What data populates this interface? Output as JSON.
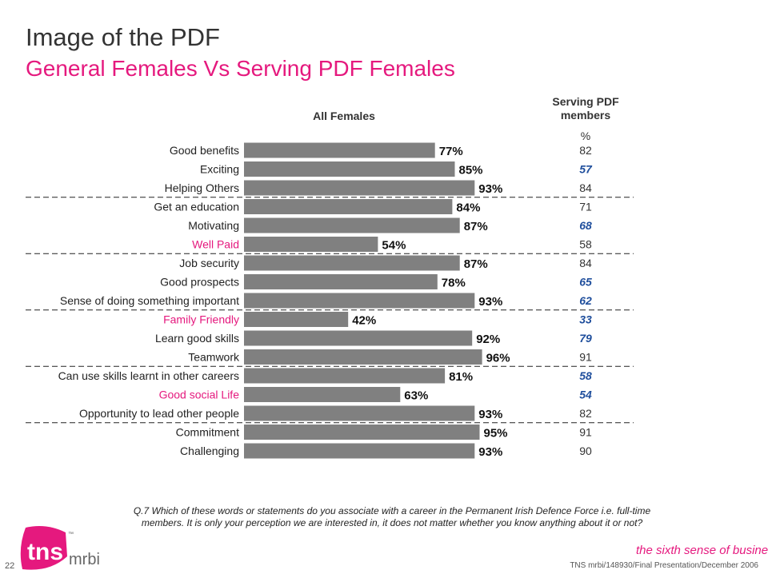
{
  "header": {
    "title": "Image of the PDF",
    "subtitle": "General Females Vs Serving PDF Females"
  },
  "chart_data": {
    "type": "bar",
    "orientation": "horizontal",
    "series_headers": [
      "All Females",
      "Serving PDF members"
    ],
    "second_column_unit": "%",
    "categories": [
      "Good benefits",
      "Exciting",
      "Helping Others",
      "Get an education",
      "Motivating",
      "Well Paid",
      "Job security",
      "Good prospects",
      "Sense of doing something important",
      "Family Friendly",
      "Learn good skills",
      "Teamwork",
      "Can use skills learnt in other careers",
      "Good social Life",
      "Opportunity to lead other people",
      "Commitment",
      "Challenging"
    ],
    "highlighted_categories": [
      "Well Paid",
      "Family Friendly",
      "Good social Life"
    ],
    "series": [
      {
        "name": "All Females",
        "values": [
          77,
          85,
          93,
          84,
          87,
          54,
          87,
          78,
          93,
          42,
          92,
          96,
          81,
          63,
          93,
          95,
          93
        ],
        "value_suffix": "%"
      },
      {
        "name": "Serving PDF members",
        "values": [
          82,
          57,
          84,
          71,
          68,
          58,
          84,
          65,
          62,
          33,
          79,
          91,
          58,
          54,
          82,
          91,
          90
        ],
        "emphasized": [
          false,
          true,
          false,
          false,
          true,
          false,
          false,
          true,
          true,
          true,
          true,
          false,
          true,
          true,
          false,
          false,
          false
        ]
      }
    ],
    "group_separators_after": [
      2,
      5,
      8,
      11,
      14
    ],
    "xlim": [
      0,
      100
    ],
    "colors": {
      "bar": "#808080",
      "highlight_label": "#e5197e",
      "emphasized_value": "#1f4e9c",
      "normal_value": "#333333"
    }
  },
  "footnote": "Q.7  Which of these words or statements do you associate with a career in the Permanent Irish Defence Force i.e. full-time members. It is only your perception we are interested in, it does not matter whether you know anything about it or not?",
  "footer": {
    "page_number": "22",
    "reference": "TNS mrbi/148930/Final Presentation/December 2006",
    "tagline": "the sixth sense of business",
    "tagline_mark": "™",
    "logo_main": "tns",
    "logo_sub": "mrbi",
    "logo_mark": "™"
  }
}
